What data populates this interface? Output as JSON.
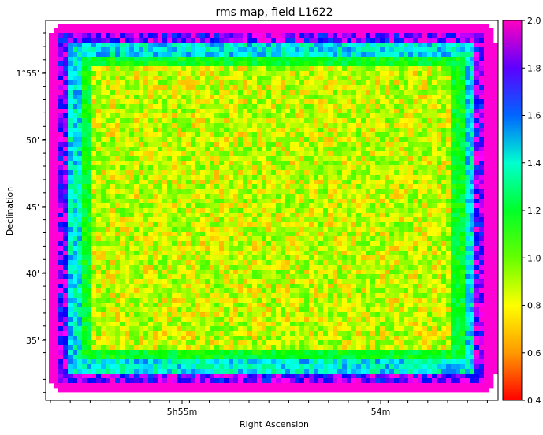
{
  "chart_data": {
    "type": "heatmap",
    "title": "rms map, field L1622",
    "xlabel": "Right Ascension",
    "ylabel": "Declination",
    "x_ticks": [
      "5h55m",
      "54m"
    ],
    "y_ticks": [
      "1°55'",
      "50'",
      "45'",
      "40'",
      "35'"
    ],
    "colorbar": {
      "colormap": "gist_rainbow",
      "range": [
        0.4,
        2.0
      ],
      "ticks": [
        "0.4",
        "0.6",
        "0.8",
        "1.0",
        "1.2",
        "1.4",
        "1.6",
        "1.8",
        "2.0"
      ]
    },
    "description_values": {
      "interior_level": 0.75,
      "edge_level": 2.0,
      "outside_level": null
    }
  }
}
